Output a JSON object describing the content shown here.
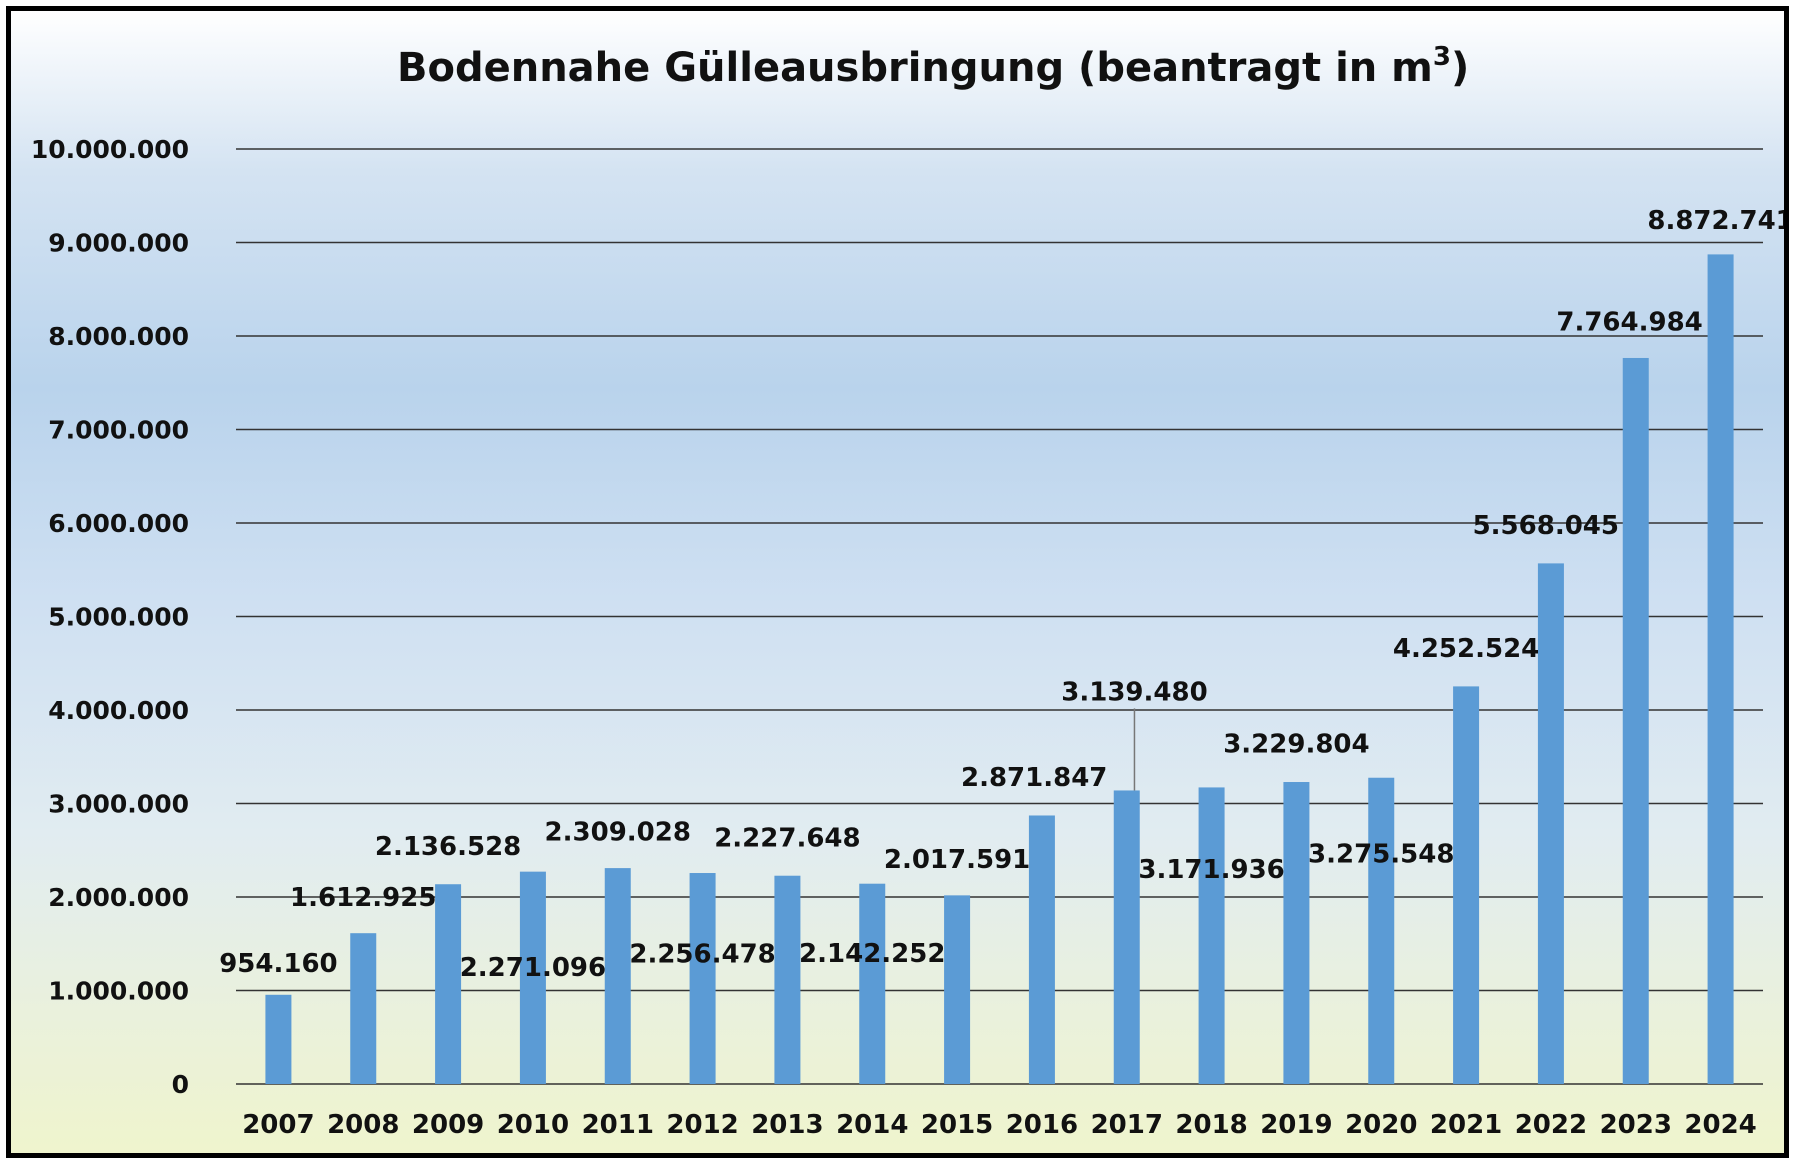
{
  "chart_data": {
    "type": "bar",
    "title": "Bodennahe Gülleausbringung (beantragt in m",
    "title_superscript": "3",
    "title_suffix": ")",
    "xlabel": "",
    "ylabel": "",
    "ylim": [
      0,
      10000000
    ],
    "y_ticks": [
      0,
      1000000,
      2000000,
      3000000,
      4000000,
      5000000,
      6000000,
      7000000,
      8000000,
      9000000,
      10000000
    ],
    "y_tick_labels": [
      "0",
      "1.000.000",
      "2.000.000",
      "3.000.000",
      "4.000.000",
      "5.000.000",
      "6.000.000",
      "7.000.000",
      "8.000.000",
      "9.000.000",
      "10.000.000"
    ],
    "categories": [
      "2007",
      "2008",
      "2009",
      "2010",
      "2011",
      "2012",
      "2013",
      "2014",
      "2015",
      "2016",
      "2017",
      "2018",
      "2019",
      "2020",
      "2021",
      "2022",
      "2023",
      "2024"
    ],
    "values": [
      954160,
      1612925,
      2136528,
      2271096,
      2309028,
      2256478,
      2227648,
      2142252,
      2017591,
      2871847,
      3139480,
      3171936,
      3229804,
      3275548,
      4252524,
      5568045,
      7764984,
      8872741
    ],
    "data_labels": [
      "954.160",
      "1.612.925",
      "2.136.528",
      "2.271.096",
      "2.309.028",
      "2.256.478",
      "2.227.648",
      "2.142.252",
      "2.017.591",
      "2.871.847",
      "3.139.480",
      "3.171.936",
      "3.229.804",
      "3.275.548",
      "4.252.524",
      "5.568.045",
      "7.764.984",
      "8.872.741"
    ],
    "label_offsets_data": [
      [
        0,
        350000
      ],
      [
        0,
        400000
      ],
      [
        0,
        420000
      ],
      [
        0,
        -1010000
      ],
      [
        0,
        400000
      ],
      [
        0,
        -850000
      ],
      [
        0,
        420000
      ],
      [
        0,
        -730000
      ],
      [
        0,
        400000
      ],
      [
        -150000,
        420000
      ],
      [
        150000,
        1070000
      ],
      [
        0,
        -860000
      ],
      [
        0,
        420000
      ],
      [
        0,
        -800000
      ],
      [
        0,
        420000
      ],
      [
        -100000,
        420000
      ],
      [
        -120000,
        400000
      ],
      [
        0,
        380000
      ]
    ],
    "leader_line_index": 10,
    "grid": true,
    "legend": "none",
    "series_color": "#5b9bd5"
  }
}
